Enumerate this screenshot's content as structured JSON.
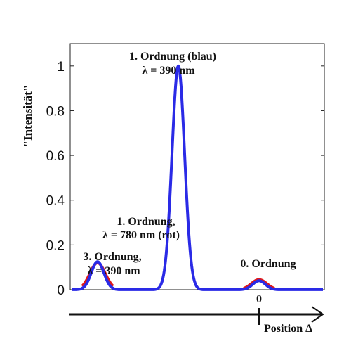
{
  "chart_data": {
    "type": "line",
    "ylabel": "\"Intensität\"",
    "ylim": [
      0,
      1.1
    ],
    "yticks": [
      "0",
      "0.2",
      "0.4",
      "0.6",
      "0.8",
      "1"
    ],
    "grid": false,
    "series": [
      {
        "name": "blau",
        "color": "#2a2ae6",
        "peaks": [
          {
            "x": -0.69,
            "height": 0.02
          },
          {
            "x": -0.46,
            "height": 0.125
          },
          {
            "x": -0.23,
            "height": 1.0
          },
          {
            "x": 0.0,
            "height": 0.04
          },
          {
            "x": 0.23,
            "height": 0.01
          }
        ]
      },
      {
        "name": "rot",
        "color": "#e01818",
        "peaks": [
          {
            "x": -0.46,
            "height": 0.12
          },
          {
            "x": 0.0,
            "height": 0.045
          }
        ]
      }
    ],
    "annotations": [
      {
        "text": "1. Ordnung (blau)",
        "x": -0.23
      },
      {
        "text": "λ = 390 nm",
        "x": -0.23
      },
      {
        "text": "1. Ordnung,",
        "x": -0.46
      },
      {
        "text": "λ = 780 nm (rot)",
        "x": -0.46
      },
      {
        "text": "3. Ordnung,",
        "x": -0.69
      },
      {
        "text": "λ = 390 nm",
        "x": -0.69
      },
      {
        "text": "0. Ordnung",
        "x": 0.0
      }
    ],
    "position_axis": {
      "label": "Position Δ",
      "zero_label": "0"
    }
  }
}
